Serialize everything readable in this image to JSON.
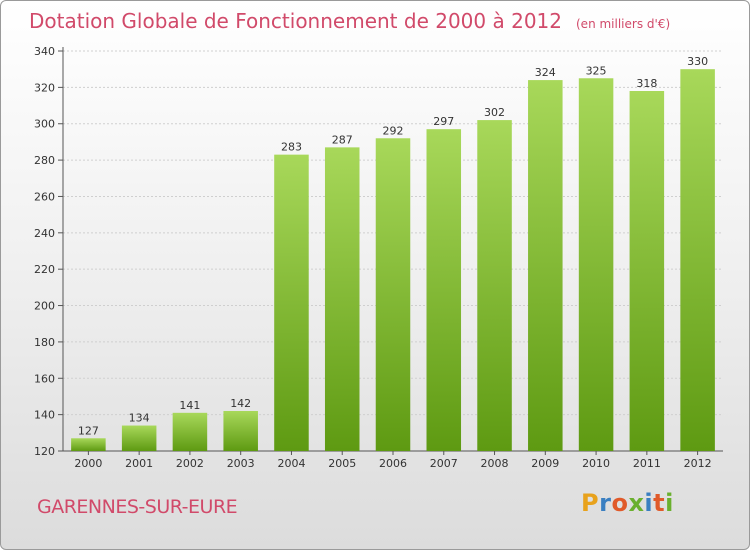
{
  "title": "Dotation Globale de Fonctionnement de 2000 à 2012",
  "subtitle": "(en milliers d'€)",
  "town": "GARENNES-SUR-EURE",
  "logo": {
    "letters": [
      "P",
      "r",
      "o",
      "x",
      "i",
      "t",
      "i"
    ],
    "colors": [
      "#e8a21c",
      "#3a7fc1",
      "#e05a2a",
      "#6ab02e",
      "#3a7fc1",
      "#e05a2a",
      "#6ab02e"
    ]
  },
  "colors": {
    "bar_top": "#a8d85a",
    "bar_bottom": "#5e9a12",
    "title": "#d14a6a"
  },
  "chart_data": {
    "type": "bar",
    "categories": [
      "2000",
      "2001",
      "2002",
      "2003",
      "2004",
      "2005",
      "2006",
      "2007",
      "2008",
      "2009",
      "2010",
      "2011",
      "2012"
    ],
    "values": [
      127,
      134,
      141,
      142,
      283,
      287,
      292,
      297,
      302,
      324,
      325,
      318,
      330
    ],
    "ylim": [
      120,
      340
    ],
    "yticks": [
      120,
      140,
      160,
      180,
      200,
      220,
      240,
      260,
      280,
      300,
      320,
      340
    ],
    "grid": true
  }
}
